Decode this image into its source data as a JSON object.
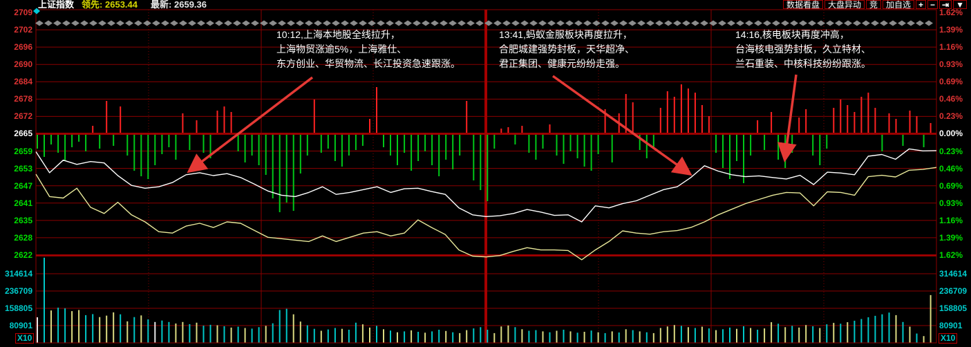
{
  "header": {
    "title": "上证指数",
    "lead_label": "领先:",
    "lead_value": "2653.44",
    "last_label": "最新:",
    "last_value": "2659.36",
    "buttons": [
      "数据看盘",
      "大盘异动",
      "竞",
      "加自选"
    ],
    "tool_buttons": [
      "+",
      "−",
      "⇥",
      "▼"
    ]
  },
  "axes": {
    "multiplier": "X10"
  },
  "annotations": [
    {
      "lines": [
        "10:12,上海本地股全线拉升，",
        "上海物贸涨逾5%，上海雅仕、",
        "东方创业、华贸物流、长江投资急速跟涨。"
      ]
    },
    {
      "lines": [
        "13:41,蚂蚁金服板块再度拉升，",
        "合肥城建强势封板，天华超净、",
        "君正集团、健康元纷纷走强。"
      ]
    },
    {
      "lines": [
        "14:16,核电板块再度冲高，",
        "台海核电强势封板，久立特材、",
        "兰石重装、中核科技纷纷跟涨。"
      ]
    }
  ],
  "colors": {
    "grid": "#8b0000",
    "baseline": "#9b0000",
    "tick_red": "#dd3333",
    "tick_green": "#00dd00",
    "tick_cyan": "#00cccc",
    "tick_white": "#ffffff",
    "price_line": "#ffffff",
    "avg_line": "#e8e89a",
    "bar_up": "#ff2222",
    "bar_down": "#00c818",
    "vol_cyan": "#00c8c8",
    "vol_yellow": "#dcdc82",
    "vol_white": "#e8e8e8",
    "arrow": "#e53935",
    "diamond": "#8c8c8c",
    "marker_cyan": "#00c8d8"
  },
  "chart_data": {
    "type": "line",
    "title": "上证指数",
    "baseline_price": 2665,
    "lead_value": 2653.44,
    "last_value": 2659.36,
    "x_range": [
      "09:30",
      "15:00"
    ],
    "ylim": [
      2622,
      2709
    ],
    "pct_lim": [
      -1.62,
      1.62
    ],
    "y_ticks_price": [
      "2709",
      "2702",
      "2696",
      "2690",
      "2684",
      "2678",
      "2672",
      "2665",
      "2659",
      "2653",
      "2647",
      "2641",
      "2635",
      "2628",
      "2622"
    ],
    "y_ticks_pct": [
      "1.62%",
      "1.39%",
      "1.16%",
      "0.93%",
      "0.69%",
      "0.46%",
      "0.23%",
      "0.00%",
      "0.23%",
      "0.46%",
      "0.69%",
      "0.93%",
      "1.16%",
      "1.39%",
      "1.62%"
    ],
    "volume_ticks": [
      "314614",
      "236709",
      "158805",
      "80901"
    ],
    "volume_unit": "X10",
    "series": [
      {
        "name": "price",
        "color": "#ffffff",
        "values": [
          2659.0,
          2651.5,
          2656.0,
          2654.5,
          2655.5,
          2655.0,
          2650.5,
          2647.0,
          2646.0,
          2646.5,
          2648.0,
          2650.8,
          2651.5,
          2650.5,
          2651.2,
          2649.8,
          2647.5,
          2645.0,
          2643.5,
          2643.0,
          2644.5,
          2646.5,
          2643.8,
          2644.5,
          2645.5,
          2646.5,
          2644.5,
          2645.8,
          2646.0,
          2644.8,
          2643.8,
          2639.0,
          2636.5,
          2635.9,
          2636.2,
          2637.0,
          2638.4,
          2637.5,
          2636.3,
          2636.5,
          2634.0,
          2639.7,
          2639.0,
          2640.5,
          2641.5,
          2643.5,
          2645.5,
          2646.5,
          2649.8,
          2654.0,
          2652.1,
          2650.8,
          2650.1,
          2650.4,
          2649.8,
          2649.3,
          2650.6,
          2647.3,
          2651.7,
          2651.4,
          2650.8,
          2657.4,
          2658.0,
          2656.3,
          2660.0,
          2659.3,
          2659.4
        ]
      },
      {
        "name": "lead-average",
        "color": "#e8e89a",
        "values": [
          2651.0,
          2643.0,
          2642.5,
          2646.0,
          2639.2,
          2637.0,
          2641.0,
          2636.5,
          2634.0,
          2630.5,
          2630.0,
          2632.5,
          2633.5,
          2632.0,
          2634.0,
          2633.5,
          2631.0,
          2628.5,
          2628.0,
          2627.5,
          2627.0,
          2629.0,
          2627.0,
          2628.5,
          2630.0,
          2630.5,
          2629.0,
          2630.0,
          2634.7,
          2632.0,
          2629.5,
          2624.0,
          2621.8,
          2621.5,
          2622.0,
          2623.5,
          2624.8,
          2624.0,
          2624.0,
          2623.8,
          2620.5,
          2624.0,
          2627.0,
          2630.8,
          2630.0,
          2629.6,
          2630.5,
          2630.9,
          2632.0,
          2634.0,
          2636.5,
          2638.5,
          2640.5,
          2642.0,
          2643.5,
          2644.5,
          2644.3,
          2639.7,
          2644.7,
          2644.5,
          2643.5,
          2650.1,
          2650.6,
          2650.0,
          2652.4,
          2652.7,
          2653.4
        ]
      }
    ],
    "delta_bars": {
      "desc": "momentum bars hanging on baseline; +px = red up, -px = green down",
      "values": [
        -20,
        -32,
        -14,
        -26,
        -38,
        -18,
        -10,
        -24,
        10,
        -20,
        46,
        -16,
        38,
        -30,
        -52,
        -60,
        -64,
        -44,
        -28,
        -18,
        -36,
        28,
        -22,
        18,
        -26,
        -34,
        32,
        38,
        30,
        -24,
        -40,
        -30,
        -44,
        -58,
        -92,
        -112,
        -98,
        -110,
        -56,
        -30,
        48,
        -26,
        -20,
        -38,
        -46,
        -30,
        -22,
        -16,
        20,
        66,
        -18,
        -30,
        -44,
        -26,
        -52,
        -38,
        -24,
        -44,
        -60,
        -36,
        -50,
        -30,
        46,
        -66,
        -80,
        -96,
        -20,
        6,
        8,
        -14,
        10,
        -26,
        -36,
        -20,
        12,
        -30,
        -42,
        -24,
        -34,
        -46,
        -52,
        -28,
        34,
        -40,
        28,
        56,
        44,
        -22,
        -34,
        -18,
        36,
        60,
        52,
        70,
        64,
        58,
        40,
        24,
        -26,
        -48,
        -64,
        -38,
        -70,
        -30,
        18,
        -22,
        30,
        -36,
        -48,
        -26,
        22,
        34,
        -30,
        -44,
        -20,
        36,
        48,
        40,
        30,
        52,
        58,
        36,
        -24,
        28,
        20,
        -16,
        32,
        24,
        -18,
        14
      ]
    },
    "volume": {
      "values": [
        118000,
        397000,
        150000,
        163000,
        160000,
        147000,
        152000,
        128000,
        133000,
        119000,
        126000,
        141000,
        132000,
        99000,
        119000,
        127000,
        108000,
        96000,
        103000,
        96000,
        89000,
        96000,
        86000,
        93000,
        79000,
        83000,
        81000,
        76000,
        70000,
        74000,
        68000,
        65000,
        72000,
        78000,
        90000,
        152000,
        158000,
        132000,
        98000,
        81000,
        64000,
        55000,
        61000,
        68000,
        64000,
        60000,
        93000,
        85000,
        70000,
        78000,
        62000,
        56000,
        48000,
        52000,
        57000,
        50000,
        46000,
        52000,
        60000,
        54000,
        48000,
        44000,
        58000,
        66000,
        72000,
        60000,
        44000,
        75000,
        80000,
        72000,
        62000,
        55000,
        58000,
        52000,
        48000,
        55000,
        60000,
        52000,
        46000,
        50000,
        56000,
        48000,
        44000,
        52000,
        47000,
        62000,
        58000,
        52000,
        48000,
        44000,
        68000,
        75000,
        82000,
        78000,
        72000,
        68000,
        74000,
        66000,
        58000,
        62000,
        70000,
        64000,
        76000,
        68000,
        60000,
        66000,
        95000,
        88000,
        72000,
        78000,
        70000,
        82000,
        76000,
        68000,
        85000,
        92000,
        88000,
        95000,
        102000,
        110000,
        118000,
        125000,
        132000,
        140000,
        128000,
        96000,
        74000,
        42000,
        30000,
        222000
      ],
      "colors": "wcyccyyccyyycycycwccyycyccycycyccycccyyccyccyccyycycycycyccycyycccyyycyccycycycycycycycycyyyycycycyccycycyycycyycycycyccccccycycyy"
    }
  }
}
